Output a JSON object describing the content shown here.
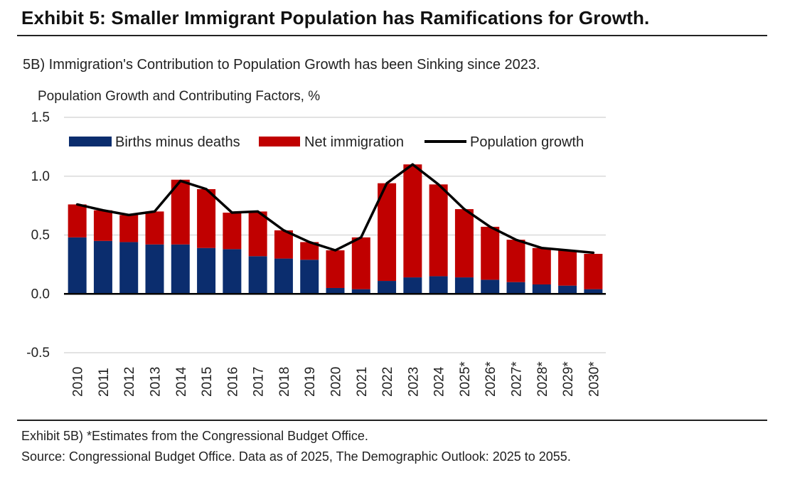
{
  "header": {
    "title": "Exhibit 5: Smaller Immigrant Population has Ramifications for Growth."
  },
  "colors": {
    "births": "#0b2d6e",
    "immigration": "#c00000",
    "growth_line": "#000000",
    "grid": "#d9d9d9"
  },
  "chart_data": {
    "type": "bar",
    "subtitle": "5B) Immigration's Contribution to Population Growth has been Sinking since 2023.",
    "ylabel": "Population Growth and Contributing Factors, %",
    "xlabel": "",
    "ylim": [
      -0.5,
      1.5
    ],
    "yticks": [
      "1.5",
      "1.0",
      "0.5",
      "0.0",
      "-0.5"
    ],
    "grid": true,
    "legend_position": "top",
    "categories": [
      "2010",
      "2011",
      "2012",
      "2013",
      "2014",
      "2015",
      "2016",
      "2017",
      "2018",
      "2019",
      "2020",
      "2021",
      "2022",
      "2023",
      "2024",
      "2025*",
      "2026*",
      "2027*",
      "2028*",
      "2029*",
      "2030*"
    ],
    "stacked": true,
    "series": [
      {
        "name": "Births minus deaths",
        "type": "bar",
        "values": [
          0.48,
          0.45,
          0.44,
          0.42,
          0.42,
          0.39,
          0.38,
          0.32,
          0.3,
          0.29,
          0.05,
          0.04,
          0.11,
          0.14,
          0.15,
          0.14,
          0.12,
          0.1,
          0.08,
          0.07,
          0.04
        ]
      },
      {
        "name": "Net immigration",
        "type": "bar",
        "values": [
          0.28,
          0.26,
          0.23,
          0.28,
          0.55,
          0.5,
          0.31,
          0.38,
          0.24,
          0.15,
          0.32,
          0.44,
          0.83,
          0.96,
          0.78,
          0.58,
          0.45,
          0.36,
          0.31,
          0.3,
          0.3
        ]
      },
      {
        "name": "Population growth",
        "type": "line",
        "values": [
          0.76,
          0.71,
          0.67,
          0.7,
          0.96,
          0.89,
          0.69,
          0.7,
          0.54,
          0.44,
          0.37,
          0.48,
          0.94,
          1.1,
          0.93,
          0.72,
          0.57,
          0.46,
          0.39,
          0.37,
          0.35
        ]
      }
    ]
  },
  "footer": {
    "note": "Exhibit 5B) *Estimates from the Congressional Budget Office.",
    "source": "Source: Congressional Budget Office. Data as of 2025, The Demographic Outlook: 2025 to 2055."
  }
}
